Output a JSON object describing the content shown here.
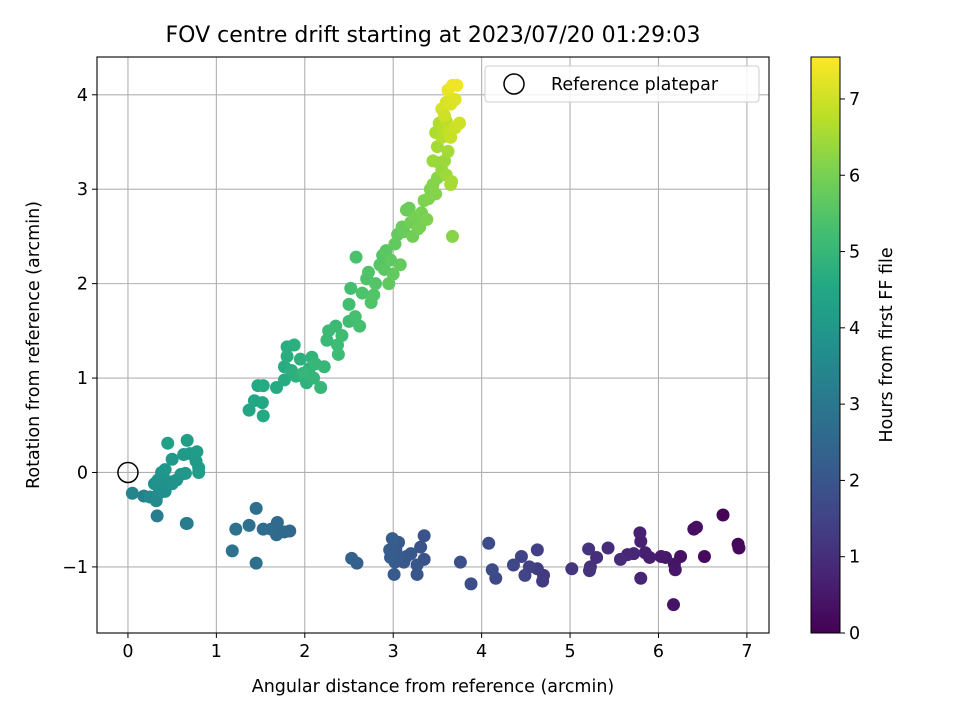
{
  "chart_data": {
    "type": "scatter",
    "title": "FOV centre drift starting at 2023/07/20 01:29:03",
    "xlabel": "Angular distance from reference (arcmin)",
    "ylabel": "Rotation from reference (arcmin)",
    "xlim": [
      -0.35,
      7.25
    ],
    "ylim": [
      -1.7,
      4.4
    ],
    "xticks": [
      0,
      1,
      2,
      3,
      4,
      5,
      6,
      7
    ],
    "yticks": [
      -1,
      0,
      1,
      2,
      3,
      4
    ],
    "grid": true,
    "legend": {
      "position": "top-right",
      "entries": [
        "Reference platepar"
      ]
    },
    "reference_point": {
      "x": 0,
      "y": 0
    },
    "colorbar": {
      "label": "Hours from first FF file",
      "range": [
        0,
        7.55
      ],
      "ticks": [
        0,
        1,
        2,
        3,
        4,
        5,
        6,
        7
      ],
      "colormap": "viridis"
    },
    "points": [
      {
        "x": 6.73,
        "y": -0.45,
        "t": 0.1
      },
      {
        "x": 6.9,
        "y": -0.76,
        "t": 0.1
      },
      {
        "x": 6.91,
        "y": -0.8,
        "t": 0.15
      },
      {
        "x": 6.52,
        "y": -0.89,
        "t": 0.2
      },
      {
        "x": 6.43,
        "y": -0.58,
        "t": 0.3
      },
      {
        "x": 6.4,
        "y": -0.6,
        "t": 0.3
      },
      {
        "x": 6.25,
        "y": -0.89,
        "t": 0.35
      },
      {
        "x": 6.18,
        "y": -0.97,
        "t": 0.4
      },
      {
        "x": 6.19,
        "y": -1.03,
        "t": 0.45
      },
      {
        "x": 6.17,
        "y": -1.4,
        "t": 0.4
      },
      {
        "x": 6.08,
        "y": -0.9,
        "t": 0.5
      },
      {
        "x": 6.03,
        "y": -0.89,
        "t": 0.55
      },
      {
        "x": 5.9,
        "y": -0.9,
        "t": 0.6
      },
      {
        "x": 5.85,
        "y": -0.85,
        "t": 0.65
      },
      {
        "x": 5.8,
        "y": -0.73,
        "t": 0.7
      },
      {
        "x": 5.79,
        "y": -0.64,
        "t": 0.7
      },
      {
        "x": 5.8,
        "y": -1.12,
        "t": 0.75
      },
      {
        "x": 5.72,
        "y": -0.86,
        "t": 0.8
      },
      {
        "x": 5.65,
        "y": -0.87,
        "t": 0.85
      },
      {
        "x": 5.57,
        "y": -0.92,
        "t": 0.9
      },
      {
        "x": 5.43,
        "y": -0.8,
        "t": 0.95
      },
      {
        "x": 5.3,
        "y": -0.9,
        "t": 1.0
      },
      {
        "x": 5.23,
        "y": -1.0,
        "t": 1.05
      },
      {
        "x": 5.22,
        "y": -1.04,
        "t": 1.1
      },
      {
        "x": 5.21,
        "y": -0.81,
        "t": 1.1
      },
      {
        "x": 5.02,
        "y": -1.02,
        "t": 1.2
      },
      {
        "x": 4.7,
        "y": -1.09,
        "t": 1.3
      },
      {
        "x": 4.69,
        "y": -1.15,
        "t": 1.3
      },
      {
        "x": 4.63,
        "y": -1.02,
        "t": 1.35
      },
      {
        "x": 4.63,
        "y": -0.82,
        "t": 1.4
      },
      {
        "x": 4.54,
        "y": -1.0,
        "t": 1.45
      },
      {
        "x": 4.49,
        "y": -1.09,
        "t": 1.5
      },
      {
        "x": 4.45,
        "y": -0.89,
        "t": 1.5
      },
      {
        "x": 4.36,
        "y": -0.98,
        "t": 1.6
      },
      {
        "x": 4.16,
        "y": -1.12,
        "t": 1.65
      },
      {
        "x": 4.12,
        "y": -1.03,
        "t": 1.7
      },
      {
        "x": 4.08,
        "y": -0.75,
        "t": 1.7
      },
      {
        "x": 3.88,
        "y": -1.18,
        "t": 1.8
      },
      {
        "x": 3.76,
        "y": -0.95,
        "t": 1.85
      },
      {
        "x": 3.35,
        "y": -0.92,
        "t": 1.9
      },
      {
        "x": 3.35,
        "y": -0.67,
        "t": 1.9
      },
      {
        "x": 3.31,
        "y": -0.79,
        "t": 1.95
      },
      {
        "x": 3.27,
        "y": -1.08,
        "t": 2.0
      },
      {
        "x": 3.27,
        "y": -0.98,
        "t": 2.0
      },
      {
        "x": 3.2,
        "y": -0.86,
        "t": 2.05
      },
      {
        "x": 3.15,
        "y": -0.89,
        "t": 2.05
      },
      {
        "x": 3.12,
        "y": -0.95,
        "t": 2.1
      },
      {
        "x": 3.08,
        "y": -0.9,
        "t": 2.1
      },
      {
        "x": 3.06,
        "y": -0.74,
        "t": 2.1
      },
      {
        "x": 3.03,
        "y": -0.82,
        "t": 2.15
      },
      {
        "x": 3.02,
        "y": -0.95,
        "t": 2.15
      },
      {
        "x": 3.01,
        "y": -1.08,
        "t": 2.15
      },
      {
        "x": 2.99,
        "y": -0.7,
        "t": 2.2
      },
      {
        "x": 2.97,
        "y": -0.9,
        "t": 2.2
      },
      {
        "x": 2.96,
        "y": -0.82,
        "t": 2.2
      },
      {
        "x": 2.59,
        "y": -0.96,
        "t": 2.3
      },
      {
        "x": 2.53,
        "y": -0.91,
        "t": 2.35
      },
      {
        "x": 1.83,
        "y": -0.62,
        "t": 2.5
      },
      {
        "x": 1.77,
        "y": -0.63,
        "t": 2.55
      },
      {
        "x": 1.69,
        "y": -0.53,
        "t": 2.6
      },
      {
        "x": 1.68,
        "y": -0.66,
        "t": 2.6
      },
      {
        "x": 1.62,
        "y": -0.6,
        "t": 2.65
      },
      {
        "x": 1.53,
        "y": -0.6,
        "t": 2.7
      },
      {
        "x": 1.45,
        "y": -0.96,
        "t": 2.75
      },
      {
        "x": 1.45,
        "y": -0.38,
        "t": 2.75
      },
      {
        "x": 1.37,
        "y": -0.56,
        "t": 2.8
      },
      {
        "x": 1.22,
        "y": -0.6,
        "t": 2.85
      },
      {
        "x": 1.18,
        "y": -0.83,
        "t": 2.9
      },
      {
        "x": 0.67,
        "y": -0.54,
        "t": 3.1
      },
      {
        "x": 0.66,
        "y": -0.54,
        "t": 3.15
      },
      {
        "x": 0.33,
        "y": -0.46,
        "t": 3.2
      },
      {
        "x": 0.18,
        "y": -0.25,
        "t": 3.3
      },
      {
        "x": 0.05,
        "y": -0.22,
        "t": 3.4
      },
      {
        "x": 0.25,
        "y": -0.26,
        "t": 3.5
      },
      {
        "x": 0.32,
        "y": -0.3,
        "t": 3.6
      },
      {
        "x": 0.35,
        "y": -0.22,
        "t": 3.65
      },
      {
        "x": 0.38,
        "y": -0.18,
        "t": 3.7
      },
      {
        "x": 0.42,
        "y": -0.2,
        "t": 3.75
      },
      {
        "x": 0.3,
        "y": -0.12,
        "t": 3.75
      },
      {
        "x": 0.34,
        "y": -0.08,
        "t": 3.8
      },
      {
        "x": 0.4,
        "y": -0.05,
        "t": 3.8
      },
      {
        "x": 0.45,
        "y": -0.1,
        "t": 3.85
      },
      {
        "x": 0.5,
        "y": -0.12,
        "t": 3.85
      },
      {
        "x": 0.55,
        "y": -0.08,
        "t": 3.9
      },
      {
        "x": 0.38,
        "y": 0.0,
        "t": 3.9
      },
      {
        "x": 0.42,
        "y": 0.03,
        "t": 3.95
      },
      {
        "x": 0.6,
        "y": -0.02,
        "t": 3.95
      },
      {
        "x": 0.65,
        "y": -0.01,
        "t": 4.0
      },
      {
        "x": 0.5,
        "y": 0.14,
        "t": 4.0
      },
      {
        "x": 0.63,
        "y": 0.19,
        "t": 4.05
      },
      {
        "x": 0.7,
        "y": 0.2,
        "t": 4.05
      },
      {
        "x": 0.77,
        "y": 0.12,
        "t": 4.1
      },
      {
        "x": 0.8,
        "y": 0.05,
        "t": 4.1
      },
      {
        "x": 0.8,
        "y": 0.0,
        "t": 4.15
      },
      {
        "x": 0.78,
        "y": 0.22,
        "t": 4.15
      },
      {
        "x": 0.67,
        "y": 0.34,
        "t": 4.2
      },
      {
        "x": 0.45,
        "y": 0.31,
        "t": 4.25
      },
      {
        "x": 0.5,
        "y": -0.1,
        "t": 3.85
      },
      {
        "x": 1.37,
        "y": 0.66,
        "t": 4.45
      },
      {
        "x": 1.43,
        "y": 0.76,
        "t": 4.5
      },
      {
        "x": 1.52,
        "y": 0.74,
        "t": 4.5
      },
      {
        "x": 1.53,
        "y": 0.6,
        "t": 4.55
      },
      {
        "x": 1.47,
        "y": 0.92,
        "t": 4.55
      },
      {
        "x": 1.53,
        "y": 0.92,
        "t": 4.6
      },
      {
        "x": 1.68,
        "y": 0.9,
        "t": 4.6
      },
      {
        "x": 1.77,
        "y": 0.98,
        "t": 4.65
      },
      {
        "x": 1.77,
        "y": 1.12,
        "t": 4.65
      },
      {
        "x": 1.8,
        "y": 1.23,
        "t": 4.7
      },
      {
        "x": 1.8,
        "y": 1.33,
        "t": 4.7
      },
      {
        "x": 1.88,
        "y": 1.35,
        "t": 4.75
      },
      {
        "x": 1.85,
        "y": 1.08,
        "t": 4.75
      },
      {
        "x": 1.9,
        "y": 1.02,
        "t": 4.8
      },
      {
        "x": 1.95,
        "y": 1.2,
        "t": 4.8
      },
      {
        "x": 2.0,
        "y": 1.0,
        "t": 4.85
      },
      {
        "x": 2.02,
        "y": 0.95,
        "t": 4.85
      },
      {
        "x": 2.05,
        "y": 1.1,
        "t": 4.9
      },
      {
        "x": 2.08,
        "y": 1.22,
        "t": 4.9
      },
      {
        "x": 2.1,
        "y": 1.0,
        "t": 4.95
      },
      {
        "x": 1.98,
        "y": 1.05,
        "t": 4.95
      },
      {
        "x": 2.12,
        "y": 1.15,
        "t": 5.0
      },
      {
        "x": 2.18,
        "y": 0.9,
        "t": 5.0
      },
      {
        "x": 2.22,
        "y": 1.12,
        "t": 5.0
      },
      {
        "x": 2.25,
        "y": 1.4,
        "t": 5.05
      },
      {
        "x": 2.27,
        "y": 1.5,
        "t": 5.1
      },
      {
        "x": 2.35,
        "y": 1.55,
        "t": 5.1
      },
      {
        "x": 2.37,
        "y": 1.35,
        "t": 5.15
      },
      {
        "x": 2.38,
        "y": 1.25,
        "t": 5.15
      },
      {
        "x": 2.42,
        "y": 1.45,
        "t": 5.2
      },
      {
        "x": 2.5,
        "y": 1.6,
        "t": 5.2
      },
      {
        "x": 2.5,
        "y": 1.78,
        "t": 5.25
      },
      {
        "x": 2.52,
        "y": 1.95,
        "t": 5.25
      },
      {
        "x": 2.57,
        "y": 1.65,
        "t": 5.3
      },
      {
        "x": 2.62,
        "y": 1.55,
        "t": 5.3
      },
      {
        "x": 2.58,
        "y": 2.28,
        "t": 5.35
      },
      {
        "x": 2.65,
        "y": 1.9,
        "t": 5.4
      },
      {
        "x": 2.7,
        "y": 2.05,
        "t": 5.4
      },
      {
        "x": 2.72,
        "y": 2.12,
        "t": 5.45
      },
      {
        "x": 2.75,
        "y": 1.8,
        "t": 5.45
      },
      {
        "x": 2.78,
        "y": 1.88,
        "t": 5.5
      },
      {
        "x": 2.8,
        "y": 2.0,
        "t": 5.5
      },
      {
        "x": 2.85,
        "y": 2.2,
        "t": 5.55
      },
      {
        "x": 2.88,
        "y": 2.3,
        "t": 5.55
      },
      {
        "x": 2.9,
        "y": 2.15,
        "t": 5.6
      },
      {
        "x": 2.92,
        "y": 2.35,
        "t": 5.6
      },
      {
        "x": 2.95,
        "y": 2.0,
        "t": 5.65
      },
      {
        "x": 2.97,
        "y": 2.25,
        "t": 5.65
      },
      {
        "x": 3.0,
        "y": 2.1,
        "t": 5.7
      },
      {
        "x": 3.02,
        "y": 2.42,
        "t": 5.7
      },
      {
        "x": 3.05,
        "y": 2.52,
        "t": 5.75
      },
      {
        "x": 3.08,
        "y": 2.2,
        "t": 5.75
      },
      {
        "x": 3.1,
        "y": 2.6,
        "t": 5.8
      },
      {
        "x": 3.12,
        "y": 2.55,
        "t": 5.8
      },
      {
        "x": 3.15,
        "y": 2.78,
        "t": 5.85
      },
      {
        "x": 3.18,
        "y": 2.8,
        "t": 5.85
      },
      {
        "x": 3.2,
        "y": 2.65,
        "t": 5.9
      },
      {
        "x": 3.22,
        "y": 2.5,
        "t": 5.9
      },
      {
        "x": 3.25,
        "y": 2.7,
        "t": 5.95
      },
      {
        "x": 3.28,
        "y": 2.58,
        "t": 5.95
      },
      {
        "x": 3.3,
        "y": 2.6,
        "t": 6.0
      },
      {
        "x": 3.32,
        "y": 2.75,
        "t": 6.0
      },
      {
        "x": 3.35,
        "y": 2.88,
        "t": 6.05
      },
      {
        "x": 3.38,
        "y": 2.68,
        "t": 6.05
      },
      {
        "x": 3.4,
        "y": 2.9,
        "t": 6.1
      },
      {
        "x": 3.42,
        "y": 3.0,
        "t": 6.1
      },
      {
        "x": 3.45,
        "y": 3.05,
        "t": 6.15
      },
      {
        "x": 3.48,
        "y": 2.95,
        "t": 6.15
      },
      {
        "x": 3.5,
        "y": 3.12,
        "t": 6.2
      },
      {
        "x": 3.52,
        "y": 3.28,
        "t": 6.3
      },
      {
        "x": 3.55,
        "y": 3.2,
        "t": 6.35
      },
      {
        "x": 3.58,
        "y": 3.3,
        "t": 6.4
      },
      {
        "x": 3.6,
        "y": 3.15,
        "t": 6.45
      },
      {
        "x": 3.62,
        "y": 3.4,
        "t": 6.5
      },
      {
        "x": 3.65,
        "y": 3.05,
        "t": 6.55
      },
      {
        "x": 3.66,
        "y": 3.08,
        "t": 6.55
      },
      {
        "x": 3.67,
        "y": 2.5,
        "t": 6.2
      },
      {
        "x": 3.45,
        "y": 3.3,
        "t": 6.4
      },
      {
        "x": 3.5,
        "y": 3.45,
        "t": 6.5
      },
      {
        "x": 3.48,
        "y": 3.6,
        "t": 6.6
      },
      {
        "x": 3.52,
        "y": 3.7,
        "t": 6.65
      },
      {
        "x": 3.55,
        "y": 3.55,
        "t": 6.7
      },
      {
        "x": 3.58,
        "y": 3.65,
        "t": 6.75
      },
      {
        "x": 3.6,
        "y": 3.72,
        "t": 6.8
      },
      {
        "x": 3.62,
        "y": 3.6,
        "t": 6.85
      },
      {
        "x": 3.65,
        "y": 3.55,
        "t": 6.9
      },
      {
        "x": 3.7,
        "y": 3.65,
        "t": 6.95
      },
      {
        "x": 3.75,
        "y": 3.7,
        "t": 7.0
      },
      {
        "x": 3.55,
        "y": 3.85,
        "t": 7.05
      },
      {
        "x": 3.6,
        "y": 3.92,
        "t": 7.1
      },
      {
        "x": 3.65,
        "y": 3.9,
        "t": 7.15
      },
      {
        "x": 3.7,
        "y": 3.95,
        "t": 7.2
      },
      {
        "x": 3.62,
        "y": 4.05,
        "t": 7.3
      },
      {
        "x": 3.67,
        "y": 4.1,
        "t": 7.35
      },
      {
        "x": 3.72,
        "y": 4.1,
        "t": 7.4
      },
      {
        "x": 3.58,
        "y": 3.78,
        "t": 7.0
      }
    ]
  }
}
